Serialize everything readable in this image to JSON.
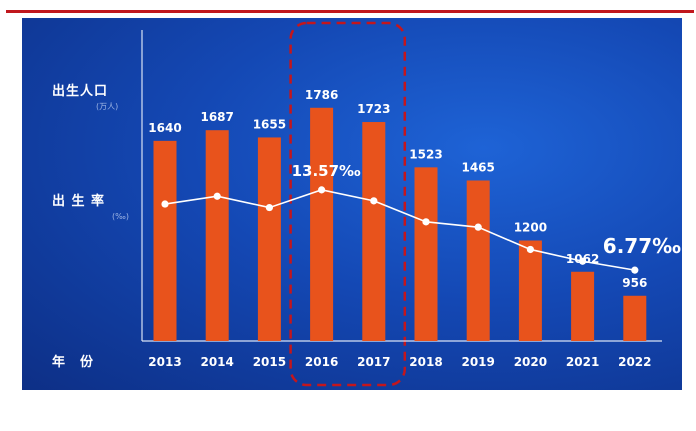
{
  "chart_data": {
    "type": "bar",
    "categories": [
      "2013",
      "2014",
      "2015",
      "2016",
      "2017",
      "2018",
      "2019",
      "2020",
      "2021",
      "2022"
    ],
    "series": [
      {
        "name": "出生人口",
        "type": "bar",
        "values": [
          1640,
          1687,
          1655,
          1786,
          1723,
          1523,
          1465,
          1200,
          1062,
          956
        ]
      },
      {
        "name": "出生率",
        "type": "line",
        "values": [
          12.37,
          13.03,
          12.07,
          13.57,
          12.64,
          10.86,
          10.41,
          8.52,
          7.52,
          6.77
        ]
      }
    ],
    "bar_color": "#e8531c",
    "line_color": "#ffffff",
    "highlight": {
      "categories": [
        "2016",
        "2017"
      ],
      "color": "#c4161c"
    },
    "annotations": [
      {
        "category": "2016",
        "text": "13.57‰"
      },
      {
        "category": "2022",
        "text": "6.77‰"
      }
    ],
    "y_labels": {
      "population": "出生人口",
      "population_unit": "(万人)",
      "rate": "出 生 率",
      "rate_unit": "(‰)",
      "year": "年　份"
    }
  }
}
